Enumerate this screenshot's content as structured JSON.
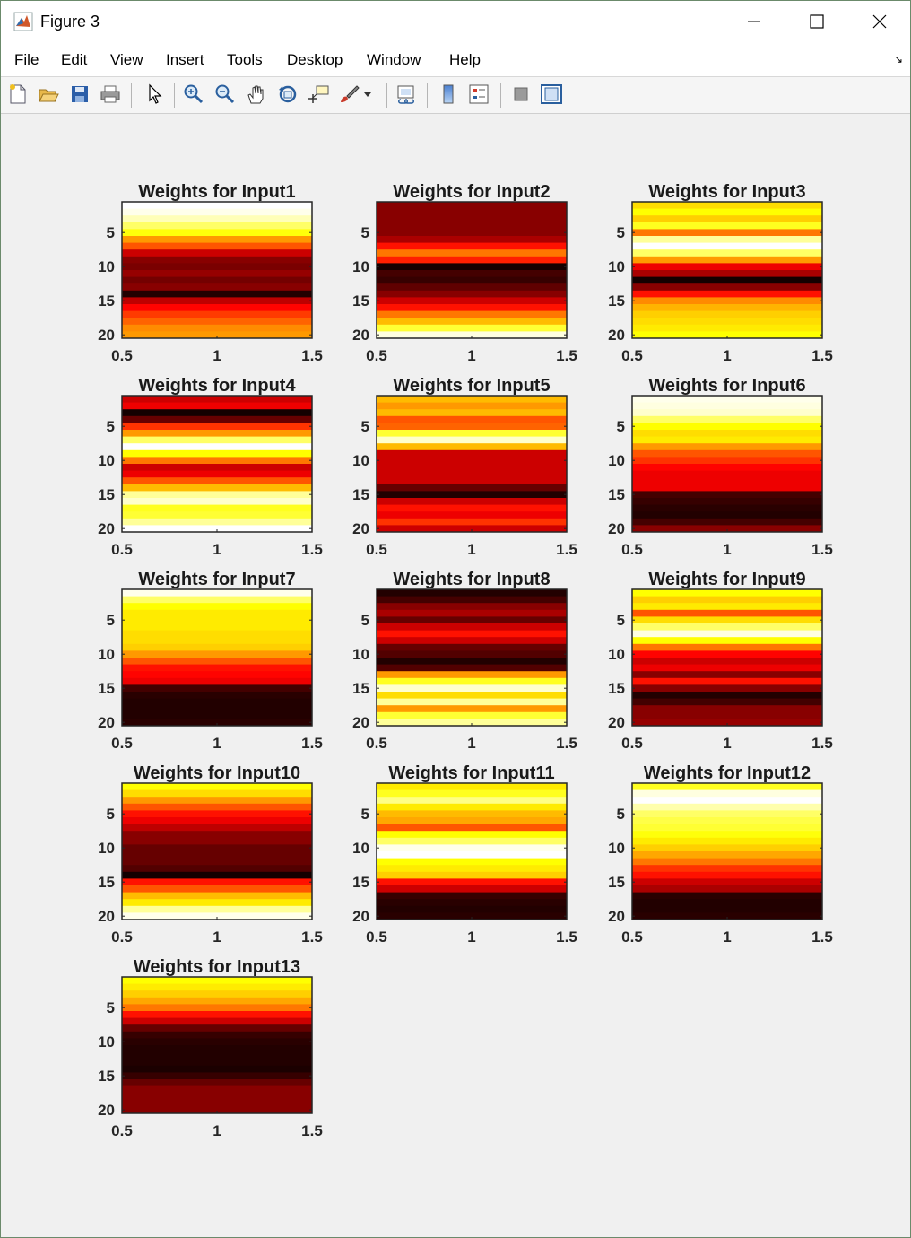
{
  "window": {
    "title": "Figure 3"
  },
  "menu": [
    "File",
    "Edit",
    "View",
    "Insert",
    "Tools",
    "Desktop",
    "Window",
    "Help"
  ],
  "toolbar_icons": [
    "new-figure-icon",
    "open-file-icon",
    "save-icon",
    "print-icon",
    "edit-plot-arrow-icon",
    "zoom-in-icon",
    "zoom-out-icon",
    "pan-hand-icon",
    "rotate-3d-icon",
    "data-cursor-icon",
    "brush-icon",
    "brush-dropdown-icon",
    "link-plot-icon",
    "colorbar-icon",
    "legend-icon",
    "hide-plot-tools-icon",
    "show-plot-tools-icon"
  ],
  "colors": {
    "window_bg": "#f0f0f0",
    "colormap": "hot",
    "axes_border": "#262626"
  },
  "chart_data": [
    {
      "type": "heatmap",
      "title": "Weights for Input1",
      "xticks": [
        "0.5",
        "1",
        "1.5"
      ],
      "yticks": [
        "5",
        "10",
        "15",
        "20"
      ],
      "xlim": [
        0.5,
        1.5
      ],
      "ylim": [
        0.5,
        20.5
      ],
      "values": [
        1.0,
        0.98,
        0.93,
        0.85,
        0.76,
        0.6,
        0.5,
        0.3,
        0.2,
        0.18,
        0.22,
        0.17,
        0.2,
        0.05,
        0.28,
        0.38,
        0.46,
        0.52,
        0.58,
        0.6
      ]
    },
    {
      "type": "heatmap",
      "title": "Weights for Input2",
      "xticks": [
        "0.5",
        "1",
        "1.5"
      ],
      "yticks": [
        "5",
        "10",
        "15",
        "20"
      ],
      "xlim": [
        0.5,
        1.5
      ],
      "ylim": [
        0.5,
        20.5
      ],
      "values": [
        0.2,
        0.2,
        0.2,
        0.2,
        0.2,
        0.25,
        0.4,
        0.55,
        0.42,
        0.03,
        0.1,
        0.08,
        0.14,
        0.2,
        0.3,
        0.4,
        0.55,
        0.65,
        0.8,
        0.97
      ]
    },
    {
      "type": "heatmap",
      "title": "Weights for Input3",
      "xticks": [
        "0.5",
        "1",
        "1.5"
      ],
      "yticks": [
        "5",
        "10",
        "15",
        "20"
      ],
      "xlim": [
        0.5,
        1.5
      ],
      "ylim": [
        0.5,
        20.5
      ],
      "values": [
        0.7,
        0.75,
        0.68,
        0.78,
        0.55,
        0.9,
        1.0,
        0.85,
        0.6,
        0.35,
        0.25,
        0.03,
        0.2,
        0.4,
        0.58,
        0.64,
        0.68,
        0.7,
        0.72,
        0.75
      ]
    },
    {
      "type": "heatmap",
      "title": "Weights for Input4",
      "xticks": [
        "0.5",
        "1",
        "1.5"
      ],
      "yticks": [
        "5",
        "10",
        "15",
        "20"
      ],
      "xlim": [
        0.5,
        1.5
      ],
      "ylim": [
        0.5,
        20.5
      ],
      "values": [
        0.3,
        0.35,
        0.03,
        0.15,
        0.45,
        0.6,
        0.85,
        1.0,
        0.75,
        0.55,
        0.3,
        0.35,
        0.5,
        0.65,
        0.9,
        0.95,
        0.78,
        0.8,
        0.9,
        1.0
      ]
    },
    {
      "type": "heatmap",
      "title": "Weights for Input5",
      "xticks": [
        "0.5",
        "1",
        "1.5"
      ],
      "yticks": [
        "5",
        "10",
        "15",
        "20"
      ],
      "xlim": [
        0.5,
        1.5
      ],
      "ylim": [
        0.5,
        20.5
      ],
      "values": [
        0.65,
        0.6,
        0.65,
        0.5,
        0.52,
        0.8,
        0.95,
        0.65,
        0.3,
        0.3,
        0.3,
        0.3,
        0.3,
        0.15,
        0.05,
        0.3,
        0.4,
        0.35,
        0.45,
        0.3
      ]
    },
    {
      "type": "heatmap",
      "title": "Weights for Input6",
      "xticks": [
        "0.5",
        "1",
        "1.5"
      ],
      "yticks": [
        "5",
        "10",
        "15",
        "20"
      ],
      "xlim": [
        0.5,
        1.5
      ],
      "ylim": [
        0.5,
        20.5
      ],
      "values": [
        0.98,
        0.97,
        0.95,
        0.85,
        0.75,
        0.7,
        0.72,
        0.6,
        0.5,
        0.45,
        0.38,
        0.35,
        0.35,
        0.35,
        0.1,
        0.08,
        0.06,
        0.05,
        0.1,
        0.2
      ]
    },
    {
      "type": "heatmap",
      "title": "Weights for Input7",
      "xticks": [
        "0.5",
        "1",
        "1.5"
      ],
      "yticks": [
        "5",
        "10",
        "15",
        "20"
      ],
      "xlim": [
        0.5,
        1.5
      ],
      "ylim": [
        0.5,
        20.5
      ],
      "values": [
        0.98,
        0.85,
        0.75,
        0.72,
        0.72,
        0.72,
        0.7,
        0.7,
        0.68,
        0.6,
        0.5,
        0.4,
        0.38,
        0.35,
        0.1,
        0.06,
        0.05,
        0.05,
        0.05,
        0.06
      ]
    },
    {
      "type": "heatmap",
      "title": "Weights for Input8",
      "xticks": [
        "0.5",
        "1",
        "1.5"
      ],
      "yticks": [
        "5",
        "10",
        "15",
        "20"
      ],
      "xlim": [
        0.5,
        1.5
      ],
      "ylim": [
        0.5,
        20.5
      ],
      "values": [
        0.05,
        0.1,
        0.2,
        0.25,
        0.15,
        0.3,
        0.4,
        0.3,
        0.15,
        0.12,
        0.05,
        0.12,
        0.6,
        0.78,
        0.95,
        0.7,
        0.9,
        0.6,
        0.8,
        0.9
      ]
    },
    {
      "type": "heatmap",
      "title": "Weights for Input9",
      "xticks": [
        "0.5",
        "1",
        "1.5"
      ],
      "yticks": [
        "5",
        "10",
        "15",
        "20"
      ],
      "xlim": [
        0.5,
        1.5
      ],
      "ylim": [
        0.5,
        20.5
      ],
      "values": [
        0.75,
        0.68,
        0.72,
        0.5,
        0.7,
        0.85,
        0.97,
        0.75,
        0.55,
        0.38,
        0.3,
        0.35,
        0.2,
        0.4,
        0.2,
        0.05,
        0.1,
        0.2,
        0.2,
        0.22
      ]
    },
    {
      "type": "heatmap",
      "title": "Weights for Input10",
      "xticks": [
        "0.5",
        "1",
        "1.5"
      ],
      "yticks": [
        "5",
        "10",
        "15",
        "20"
      ],
      "xlim": [
        0.5,
        1.5
      ],
      "ylim": [
        0.5,
        20.5
      ],
      "values": [
        0.75,
        0.7,
        0.6,
        0.5,
        0.4,
        0.35,
        0.28,
        0.2,
        0.2,
        0.15,
        0.15,
        0.15,
        0.12,
        0.03,
        0.4,
        0.5,
        0.65,
        0.72,
        0.9,
        0.98
      ]
    },
    {
      "type": "heatmap",
      "title": "Weights for Input11",
      "xticks": [
        "0.5",
        "1",
        "1.5"
      ],
      "yticks": [
        "5",
        "10",
        "15",
        "20"
      ],
      "xlim": [
        0.5,
        1.5
      ],
      "ylim": [
        0.5,
        20.5
      ],
      "values": [
        0.72,
        0.78,
        0.88,
        0.72,
        0.65,
        0.62,
        0.5,
        0.75,
        0.85,
        0.98,
        1.0,
        0.75,
        0.72,
        0.68,
        0.4,
        0.3,
        0.08,
        0.06,
        0.05,
        0.06
      ]
    },
    {
      "type": "heatmap",
      "title": "Weights for Input12",
      "xticks": [
        "0.5",
        "1",
        "1.5"
      ],
      "yticks": [
        "5",
        "10",
        "15",
        "20"
      ],
      "xlim": [
        0.5,
        1.5
      ],
      "ylim": [
        0.5,
        20.5
      ],
      "values": [
        0.78,
        0.97,
        1.0,
        0.92,
        0.85,
        0.82,
        0.8,
        0.76,
        0.72,
        0.68,
        0.62,
        0.55,
        0.45,
        0.4,
        0.3,
        0.25,
        0.06,
        0.05,
        0.05,
        0.06
      ]
    },
    {
      "type": "heatmap",
      "title": "Weights for Input13",
      "xticks": [
        "0.5",
        "1",
        "1.5"
      ],
      "yticks": [
        "5",
        "10",
        "15",
        "20"
      ],
      "xlim": [
        0.5,
        1.5
      ],
      "ylim": [
        0.5,
        20.5
      ],
      "values": [
        0.75,
        0.72,
        0.68,
        0.62,
        0.55,
        0.4,
        0.3,
        0.15,
        0.08,
        0.06,
        0.05,
        0.05,
        0.05,
        0.04,
        0.08,
        0.15,
        0.2,
        0.2,
        0.2,
        0.2
      ]
    }
  ]
}
